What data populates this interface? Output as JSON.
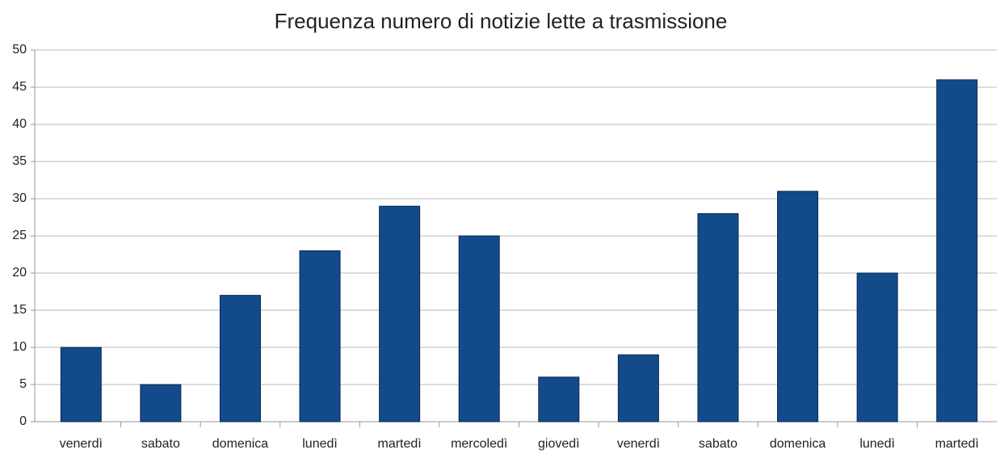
{
  "chart_data": {
    "type": "bar",
    "title": "Frequenza numero di notizie lette a trasmissione",
    "categories": [
      "venerdì",
      "sabato",
      "domenica",
      "lunedì",
      "martedì",
      "mercoledì",
      "giovedì",
      "venerdì",
      "sabato",
      "domenica",
      "lunedì",
      "martedì"
    ],
    "values": [
      10,
      5,
      17,
      23,
      29,
      25,
      6,
      9,
      28,
      31,
      20,
      46
    ],
    "color": "#134a8a",
    "ylim": [
      0,
      50
    ],
    "yticks": [
      0,
      5,
      10,
      15,
      20,
      25,
      30,
      35,
      40,
      45,
      50
    ],
    "grid": true
  }
}
